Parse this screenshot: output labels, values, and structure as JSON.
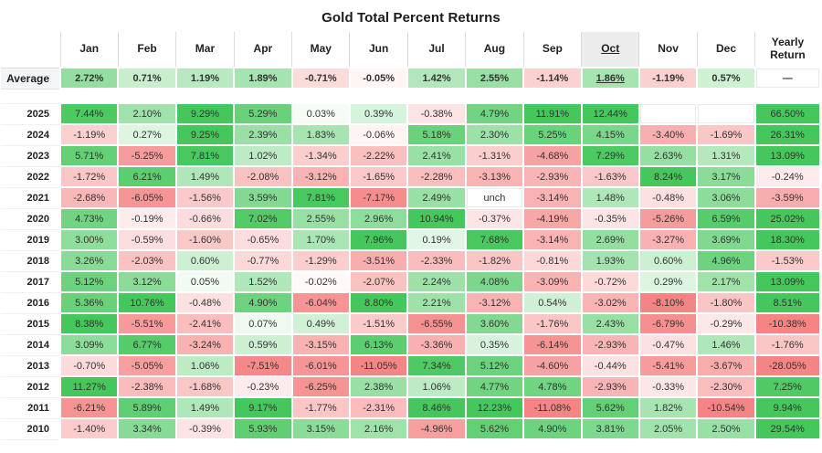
{
  "page": {
    "title": "Gold Total Percent Returns"
  },
  "colors": {
    "positive_max": "#46c75c",
    "negative_max": "#f58585",
    "neutral_bg": "#ffffff",
    "highlight_header_bg": "#ececec",
    "scale_cap_percent": 8
  },
  "chart_data": {
    "type": "heatmap",
    "title": "Gold Total Percent Returns",
    "columns": [
      "Jan",
      "Feb",
      "Mar",
      "Apr",
      "May",
      "Jun",
      "Jul",
      "Aug",
      "Sep",
      "Oct",
      "Nov",
      "Dec"
    ],
    "yearly_header": "Yearly Return",
    "highlighted_column": "Oct",
    "highlighted_column_index": 9,
    "average_row": {
      "label": "Average",
      "cells": [
        "2.72%",
        "0.71%",
        "1.19%",
        "1.89%",
        "-0.71%",
        "-0.05%",
        "1.42%",
        "2.55%",
        "-1.14%",
        "1.86%",
        "-1.19%",
        "0.57%"
      ],
      "yearly": "—"
    },
    "year_rows": [
      {
        "year": "2025",
        "cells": [
          "7.44%",
          "2.10%",
          "9.29%",
          "5.29%",
          "0.03%",
          "0.39%",
          "-0.38%",
          "4.79%",
          "11.91%",
          "12.44%",
          "",
          ""
        ],
        "yearly": "66.50%"
      },
      {
        "year": "2024",
        "cells": [
          "-1.19%",
          "0.27%",
          "9.25%",
          "2.39%",
          "1.83%",
          "-0.06%",
          "5.18%",
          "2.30%",
          "5.25%",
          "4.15%",
          "-3.40%",
          "-1.69%"
        ],
        "yearly": "26.31%"
      },
      {
        "year": "2023",
        "cells": [
          "5.71%",
          "-5.25%",
          "7.81%",
          "1.02%",
          "-1.34%",
          "-2.22%",
          "2.41%",
          "-1.31%",
          "-4.68%",
          "7.29%",
          "2.63%",
          "1.31%"
        ],
        "yearly": "13.09%"
      },
      {
        "year": "2022",
        "cells": [
          "-1.72%",
          "6.21%",
          "1.49%",
          "-2.08%",
          "-3.12%",
          "-1.65%",
          "-2.28%",
          "-3.13%",
          "-2.93%",
          "-1.63%",
          "8.24%",
          "3.17%"
        ],
        "yearly": "-0.24%"
      },
      {
        "year": "2021",
        "cells": [
          "-2.68%",
          "-6.05%",
          "-1.56%",
          "3.59%",
          "7.81%",
          "-7.17%",
          "2.49%",
          "unch",
          "-3.14%",
          "1.48%",
          "-0.48%",
          "3.06%"
        ],
        "yearly": "-3.59%"
      },
      {
        "year": "2020",
        "cells": [
          "4.73%",
          "-0.19%",
          "-0.66%",
          "7.02%",
          "2.55%",
          "2.96%",
          "10.94%",
          "-0.37%",
          "-4.19%",
          "-0.35%",
          "-5.26%",
          "6.59%"
        ],
        "yearly": "25.02%"
      },
      {
        "year": "2019",
        "cells": [
          "3.00%",
          "-0.59%",
          "-1.60%",
          "-0.65%",
          "1.70%",
          "7.96%",
          "0.19%",
          "7.68%",
          "-3.14%",
          "2.69%",
          "-3.27%",
          "3.69%"
        ],
        "yearly": "18.30%"
      },
      {
        "year": "2018",
        "cells": [
          "3.26%",
          "-2.03%",
          "0.60%",
          "-0.77%",
          "-1.29%",
          "-3.51%",
          "-2.33%",
          "-1.82%",
          "-0.81%",
          "1.93%",
          "0.60%",
          "4.96%"
        ],
        "yearly": "-1.53%"
      },
      {
        "year": "2017",
        "cells": [
          "5.12%",
          "3.12%",
          "0.05%",
          "1.52%",
          "-0.02%",
          "-2.07%",
          "2.24%",
          "4.08%",
          "-3.09%",
          "-0.72%",
          "0.29%",
          "2.17%"
        ],
        "yearly": "13.09%"
      },
      {
        "year": "2016",
        "cells": [
          "5.36%",
          "10.76%",
          "-0.48%",
          "4.90%",
          "-6.04%",
          "8.80%",
          "2.21%",
          "-3.12%",
          "0.54%",
          "-3.02%",
          "-8.10%",
          "-1.80%"
        ],
        "yearly": "8.51%"
      },
      {
        "year": "2015",
        "cells": [
          "8.38%",
          "-5.51%",
          "-2.41%",
          "0.07%",
          "0.49%",
          "-1.51%",
          "-6.55%",
          "3.60%",
          "-1.76%",
          "2.43%",
          "-6.79%",
          "-0.29%"
        ],
        "yearly": "-10.38%"
      },
      {
        "year": "2014",
        "cells": [
          "3.09%",
          "6.77%",
          "-3.24%",
          "0.59%",
          "-3.15%",
          "6.13%",
          "-3.36%",
          "0.35%",
          "-6.14%",
          "-2.93%",
          "-0.47%",
          "1.46%"
        ],
        "yearly": "-1.76%"
      },
      {
        "year": "2013",
        "cells": [
          "-0.70%",
          "-5.05%",
          "1.06%",
          "-7.51%",
          "-6.01%",
          "-11.05%",
          "7.34%",
          "5.12%",
          "-4.60%",
          "-0.44%",
          "-5.41%",
          "-3.67%"
        ],
        "yearly": "-28.05%"
      },
      {
        "year": "2012",
        "cells": [
          "11.27%",
          "-2.38%",
          "-1.68%",
          "-0.23%",
          "-6.25%",
          "2.38%",
          "1.06%",
          "4.77%",
          "4.78%",
          "-2.93%",
          "-0.33%",
          "-2.30%"
        ],
        "yearly": "7.25%"
      },
      {
        "year": "2011",
        "cells": [
          "-6.21%",
          "5.89%",
          "1.49%",
          "9.17%",
          "-1.77%",
          "-2.31%",
          "8.46%",
          "12.23%",
          "-11.08%",
          "5.62%",
          "1.82%",
          "-10.54%"
        ],
        "yearly": "9.94%"
      },
      {
        "year": "2010",
        "cells": [
          "-1.40%",
          "3.34%",
          "-0.39%",
          "5.93%",
          "3.15%",
          "2.16%",
          "-4.96%",
          "5.62%",
          "4.90%",
          "3.81%",
          "2.05%",
          "2.50%"
        ],
        "yearly": "29.54%"
      }
    ]
  }
}
